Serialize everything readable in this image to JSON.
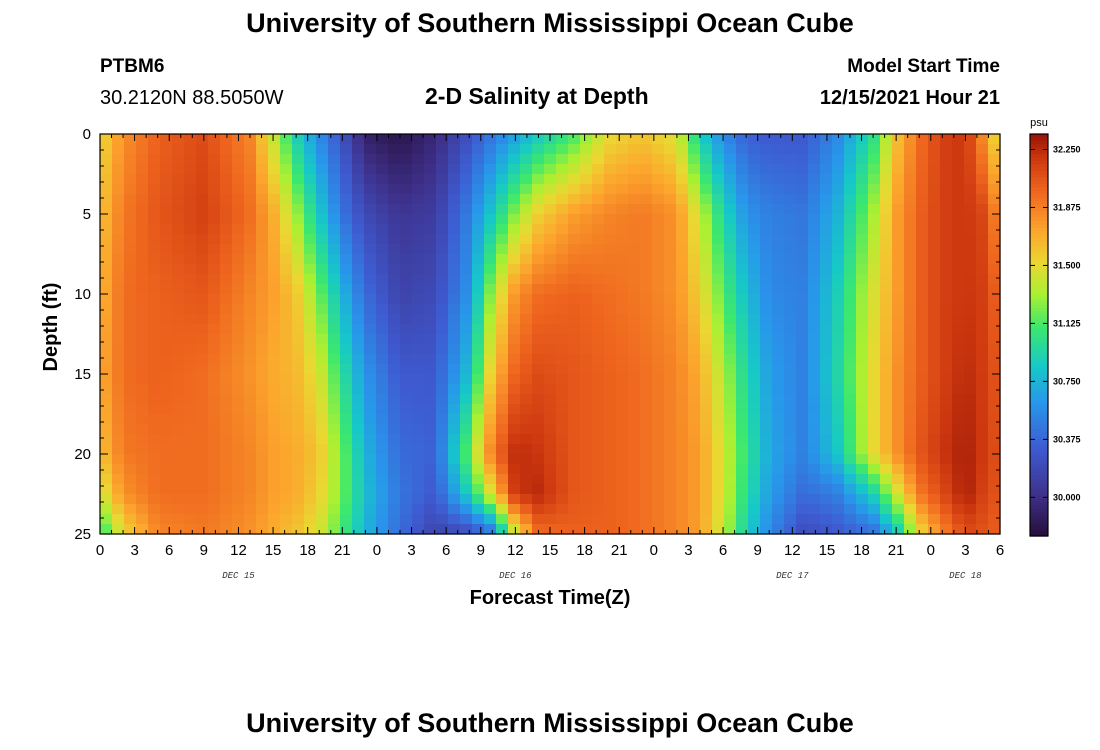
{
  "header": {
    "title": "University of Southern Mississippi Ocean Cube",
    "station": "PTBM6",
    "coordinates": "30.2120N  88.5050W",
    "subtitle": "2-D Salinity at Depth",
    "model_start_label": "Model Start Time",
    "model_start_value": "12/15/2021 Hour 21"
  },
  "footer": {
    "title": "University of Southern Mississippi Ocean Cube"
  },
  "chart_data": {
    "type": "heatmap",
    "title": "2-D Salinity at Depth",
    "xlabel": "Forecast Time(Z)",
    "ylabel": "Depth (ft)",
    "x_range_hours": [
      0,
      78
    ],
    "y_range_ft": [
      0,
      25
    ],
    "y_ticks": [
      "0",
      "5",
      "10",
      "15",
      "20",
      "25"
    ],
    "x_ticks": [
      "0",
      "3",
      "6",
      "9",
      "12",
      "15",
      "18",
      "21",
      "0",
      "3",
      "6",
      "9",
      "12",
      "15",
      "18",
      "21",
      "0",
      "3",
      "6",
      "9",
      "12",
      "15",
      "18",
      "21",
      "0",
      "3",
      "6"
    ],
    "day_labels": [
      {
        "label": "DEC 15",
        "hour": 12
      },
      {
        "label": "DEC 16",
        "hour": 36
      },
      {
        "label": "DEC 17",
        "hour": 60
      },
      {
        "label": "DEC 18",
        "hour": 75
      }
    ],
    "colorbar": {
      "unit": "psu",
      "min": 29.75,
      "max": 32.35,
      "ticks": [
        "32.250",
        "31.875",
        "31.500",
        "31.125",
        "30.750",
        "30.375",
        "30.000"
      ]
    },
    "profile_hours": [
      0,
      2,
      5,
      9,
      13,
      15,
      17,
      19,
      21,
      23,
      26,
      29,
      32,
      34,
      36,
      38,
      41,
      44,
      47,
      50,
      52,
      54,
      56,
      58,
      61,
      64,
      67,
      69,
      71,
      73,
      75,
      77,
      78
    ],
    "profile_depths_ft": [
      0,
      5,
      10,
      15,
      20,
      22.5,
      25
    ],
    "salinity_psu": [
      [
        31.5,
        31.6,
        31.65,
        31.7,
        31.6,
        31.4,
        31.0
      ],
      [
        31.8,
        31.9,
        31.95,
        31.95,
        31.9,
        31.8,
        31.5
      ],
      [
        32.0,
        32.05,
        32.0,
        32.0,
        31.95,
        31.95,
        31.85
      ],
      [
        32.1,
        32.15,
        32.05,
        31.95,
        31.95,
        31.95,
        31.9
      ],
      [
        31.85,
        31.95,
        31.85,
        31.8,
        31.85,
        31.85,
        31.8
      ],
      [
        31.4,
        31.7,
        31.75,
        31.7,
        31.75,
        31.75,
        31.7
      ],
      [
        30.9,
        31.3,
        31.6,
        31.65,
        31.7,
        31.7,
        31.6
      ],
      [
        30.55,
        30.85,
        31.2,
        31.45,
        31.6,
        31.55,
        31.45
      ],
      [
        30.25,
        30.45,
        30.75,
        31.0,
        31.2,
        31.2,
        31.1
      ],
      [
        29.9,
        30.2,
        30.4,
        30.6,
        30.75,
        30.8,
        30.75
      ],
      [
        29.8,
        30.05,
        30.15,
        30.3,
        30.4,
        30.45,
        30.4
      ],
      [
        29.95,
        30.1,
        30.2,
        30.3,
        30.35,
        30.3,
        30.15
      ],
      [
        30.25,
        30.5,
        30.6,
        30.8,
        31.2,
        30.9,
        30.2
      ],
      [
        30.45,
        30.85,
        31.3,
        31.6,
        31.9,
        31.5,
        30.4
      ],
      [
        30.65,
        31.25,
        31.8,
        32.0,
        32.25,
        32.2,
        31.4
      ],
      [
        30.85,
        31.55,
        31.95,
        32.1,
        32.2,
        32.25,
        31.95
      ],
      [
        31.1,
        31.75,
        32.0,
        32.05,
        32.05,
        32.05,
        32.0
      ],
      [
        31.5,
        31.85,
        31.95,
        32.0,
        32.0,
        32.0,
        32.0
      ],
      [
        31.6,
        31.9,
        31.9,
        31.95,
        31.95,
        31.95,
        31.95
      ],
      [
        31.45,
        31.8,
        31.8,
        31.85,
        31.85,
        31.85,
        31.85
      ],
      [
        30.9,
        31.4,
        31.55,
        31.7,
        31.75,
        31.75,
        31.75
      ],
      [
        30.55,
        30.95,
        31.15,
        31.35,
        31.45,
        31.45,
        31.4
      ],
      [
        30.35,
        30.6,
        30.8,
        30.95,
        31.05,
        31.0,
        30.9
      ],
      [
        30.3,
        30.5,
        30.55,
        30.65,
        30.7,
        30.65,
        30.55
      ],
      [
        30.3,
        30.45,
        30.5,
        30.5,
        30.5,
        30.4,
        30.2
      ],
      [
        30.55,
        30.75,
        30.9,
        30.95,
        30.85,
        30.5,
        30.3
      ],
      [
        31.0,
        31.3,
        31.45,
        31.5,
        31.5,
        30.9,
        30.4
      ],
      [
        31.6,
        31.75,
        31.75,
        31.8,
        31.8,
        31.4,
        30.8
      ],
      [
        31.95,
        32.0,
        32.0,
        32.0,
        32.05,
        31.9,
        31.5
      ],
      [
        32.15,
        32.15,
        32.15,
        32.15,
        32.2,
        32.1,
        31.85
      ],
      [
        32.2,
        32.2,
        32.2,
        32.25,
        32.3,
        32.3,
        32.1
      ],
      [
        31.7,
        32.1,
        32.15,
        32.15,
        32.15,
        32.1,
        32.05
      ],
      [
        31.4,
        31.7,
        31.9,
        32.0,
        32.05,
        32.05,
        32.0
      ]
    ]
  }
}
